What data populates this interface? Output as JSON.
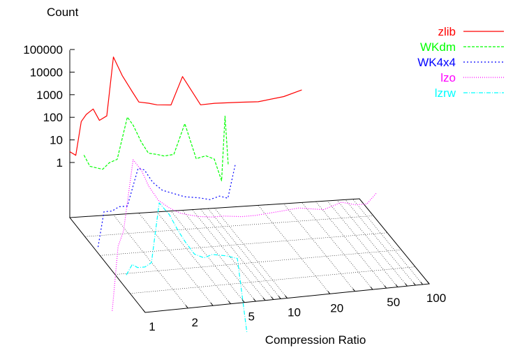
{
  "chart_data": {
    "type": "line",
    "title": "",
    "zlabel": "Count",
    "xlabel": "Compression Ratio",
    "x_scale": "log",
    "z_scale": "log",
    "x_ticks": [
      "1",
      "2",
      "5",
      "10",
      "20",
      "50",
      "100"
    ],
    "z_ticks": [
      "1",
      "10",
      "100",
      "1000",
      "10000",
      "100000"
    ],
    "grid": true,
    "legend_position": "top-right",
    "series": [
      {
        "name": "zlib",
        "color": "#ff0000",
        "dash": "",
        "x": [
          1.0,
          1.1,
          1.2,
          1.3,
          1.45,
          1.6,
          1.8,
          2.0,
          2.3,
          2.7,
          3.0,
          3.5,
          4.0,
          5.0,
          6.0,
          8.0,
          10,
          15,
          20,
          30,
          40
        ],
        "values": [
          3,
          2,
          60,
          120,
          200,
          60,
          90,
          35000,
          5000,
          900,
          300,
          250,
          200,
          180,
          3000,
          150,
          160,
          150,
          140,
          200,
          350
        ]
      },
      {
        "name": "WKdm",
        "color": "#00ff00",
        "dash": "4 2",
        "x": [
          1.0,
          1.1,
          1.2,
          1.35,
          1.5,
          1.7,
          2.0,
          2.2,
          2.5,
          2.8,
          3.2,
          3.6,
          4.2,
          5.0,
          6.0,
          7.0,
          8.0,
          9.0,
          9.5,
          10
        ],
        "values": [
          40,
          12,
          10,
          8,
          15,
          20,
          1500,
          600,
          100,
          30,
          25,
          20,
          22,
          500,
          12,
          15,
          10,
          1,
          800,
          5
        ]
      },
      {
        "name": "WK4x4",
        "color": "#0000ff",
        "dash": "2 3",
        "x": [
          1.0,
          1.1,
          1.25,
          1.4,
          1.6,
          1.9,
          2.1,
          2.4,
          2.8,
          3.3,
          4.0,
          5.0,
          6.0,
          7.0,
          8.0,
          9.0
        ],
        "values": [
          0.05,
          2,
          2,
          3,
          3,
          150,
          120,
          30,
          12,
          8,
          5,
          4,
          3,
          4,
          3,
          100
        ]
      },
      {
        "name": "lzo",
        "color": "#ff00ff",
        "dash": "1 2",
        "x": [
          1.0,
          1.1,
          1.2,
          1.4,
          1.6,
          1.8,
          2.1,
          2.5,
          3.0,
          3.5,
          4.0,
          5.0,
          6.0,
          8.0,
          10,
          15,
          20,
          30,
          40,
          50,
          60,
          70
        ],
        "values": [
          0.001,
          1,
          5,
          10000,
          3000,
          500,
          100,
          40,
          20,
          15,
          12,
          10,
          10,
          8,
          8,
          10,
          12,
          8,
          15,
          10,
          10,
          30
        ]
      },
      {
        "name": "lzrw",
        "color": "#00ffff",
        "dash": "6 2 1 2",
        "x": [
          1.0,
          1.1,
          1.2,
          1.35,
          1.5,
          1.7,
          2.0,
          2.3,
          2.6,
          3.0,
          3.5,
          4.0,
          5.0,
          6.0,
          7.0
        ],
        "values": [
          1,
          3,
          2,
          2,
          3,
          2000,
          500,
          80,
          20,
          5,
          3,
          4,
          3,
          2,
          0.0005
        ]
      }
    ]
  }
}
